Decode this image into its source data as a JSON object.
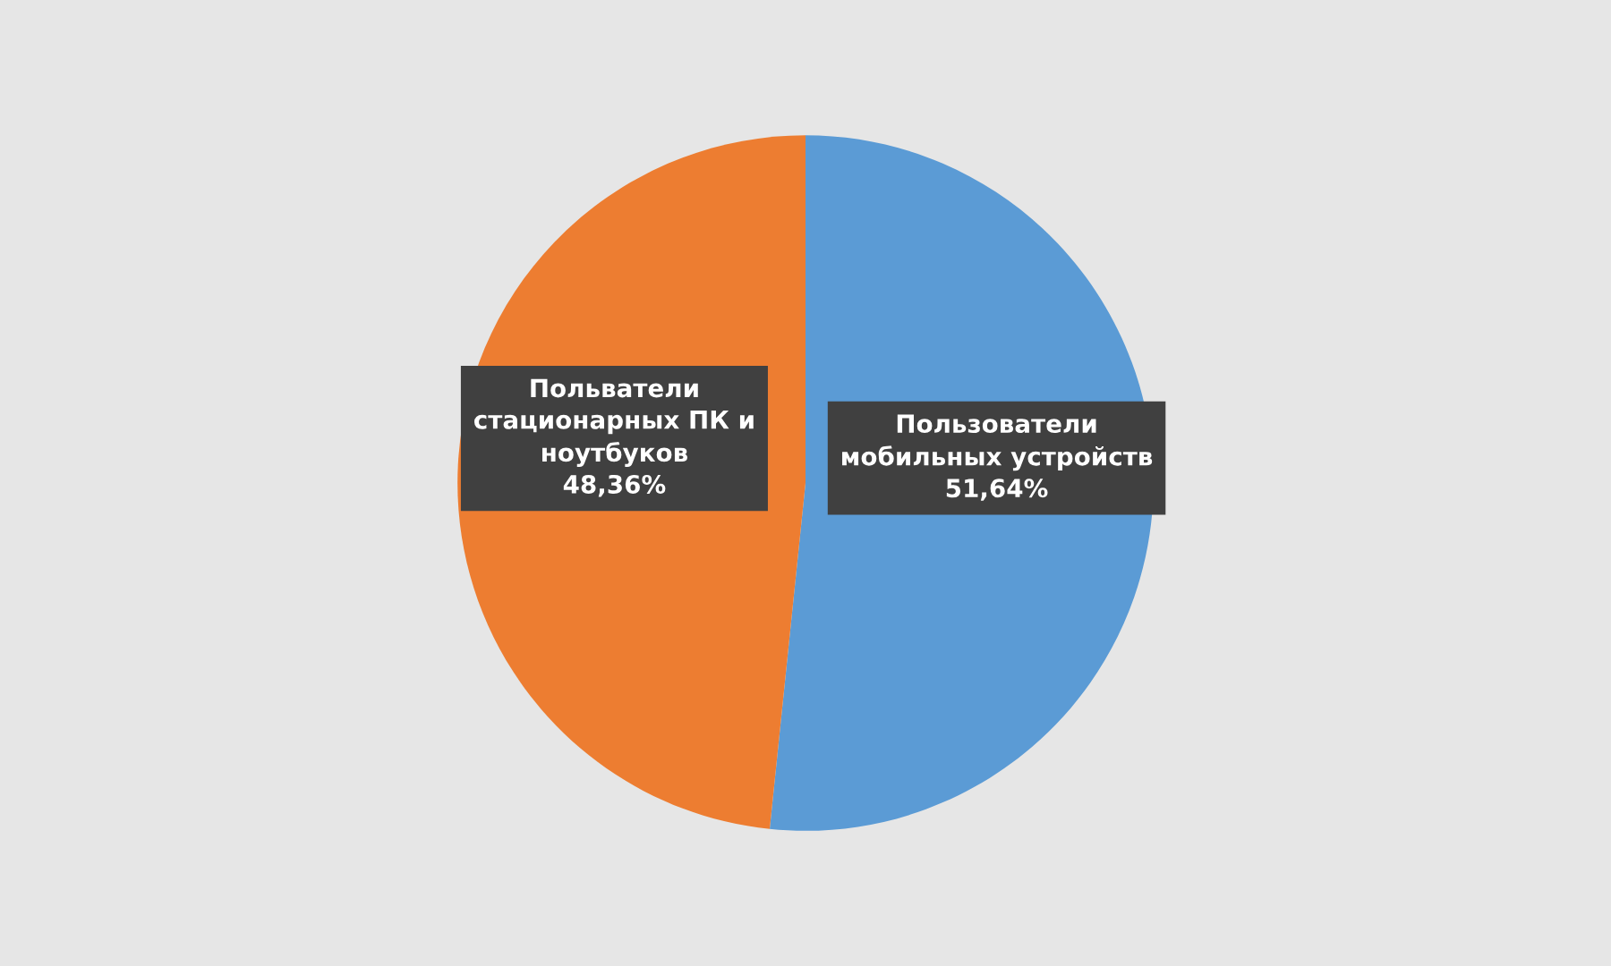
{
  "chart_data": {
    "type": "pie",
    "categories": [
      "Пользователи\nмобильных устройств",
      "Польватели\nстационарных ПК и\nноутбуков"
    ],
    "values": [
      51.64,
      48.36
    ],
    "value_labels": [
      "51,64%",
      "48,36%"
    ],
    "colors": [
      "#5b9bd5",
      "#ed7d31"
    ],
    "legend": false
  }
}
